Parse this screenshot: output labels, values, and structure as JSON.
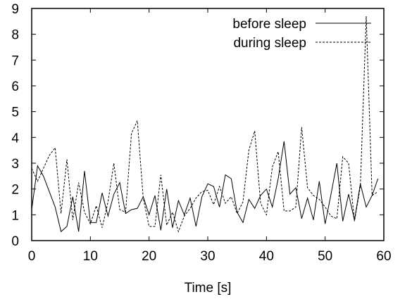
{
  "chart_data": {
    "type": "line",
    "xlabel": "Time [s]",
    "ylabel": "",
    "xlim": [
      0,
      60
    ],
    "ylim": [
      0,
      9
    ],
    "xticks": [
      "0",
      "10",
      "20",
      "30",
      "40",
      "50",
      "60"
    ],
    "yticks": [
      "0",
      "1",
      "2",
      "3",
      "4",
      "5",
      "6",
      "7",
      "8",
      "9"
    ],
    "grid": false,
    "legend_position": "top-right",
    "x": [
      0,
      1,
      2,
      3,
      4,
      5,
      6,
      7,
      8,
      9,
      10,
      11,
      12,
      13,
      14,
      15,
      16,
      17,
      18,
      19,
      20,
      21,
      22,
      23,
      24,
      25,
      26,
      27,
      28,
      29,
      30,
      31,
      32,
      33,
      34,
      35,
      36,
      37,
      38,
      39,
      40,
      41,
      42,
      43,
      44,
      45,
      46,
      47,
      48,
      49,
      50,
      51,
      52,
      53,
      54,
      55,
      56,
      57,
      58,
      59
    ],
    "series": [
      {
        "name": "before sleep",
        "style": "solid",
        "values": [
          1.2,
          2.9,
          2.5,
          1.9,
          1.3,
          0.35,
          0.55,
          1.7,
          0.35,
          2.7,
          0.7,
          0.7,
          1.85,
          0.95,
          1.8,
          2.25,
          1.05,
          1.2,
          1.25,
          1.7,
          1.0,
          1.75,
          0.4,
          2.0,
          0.5,
          1.55,
          1.0,
          1.65,
          0.55,
          1.7,
          2.2,
          2.1,
          1.3,
          2.55,
          2.4,
          1.1,
          0.7,
          1.6,
          1.25,
          1.75,
          2.0,
          1.3,
          2.4,
          3.85,
          1.8,
          2.05,
          0.85,
          1.65,
          0.8,
          2.3,
          0.65,
          1.8,
          3.0,
          0.75,
          1.8,
          0.8,
          2.2,
          1.3,
          1.75,
          2.4
        ]
      },
      {
        "name": "during sleep",
        "style": "dashed",
        "values": [
          2.8,
          2.3,
          2.8,
          3.3,
          3.6,
          1.05,
          3.15,
          0.8,
          2.25,
          1.1,
          0.65,
          1.35,
          0.5,
          1.5,
          3.0,
          1.2,
          1.1,
          4.15,
          4.65,
          1.65,
          0.55,
          0.55,
          2.55,
          0.6,
          1.1,
          0.35,
          0.95,
          1.25,
          1.65,
          1.9,
          1.95,
          1.4,
          2.1,
          1.45,
          1.7,
          1.05,
          1.5,
          3.5,
          4.25,
          1.45,
          1.0,
          2.85,
          3.45,
          1.15,
          1.15,
          1.3,
          4.4,
          2.05,
          1.75,
          1.6,
          1.3,
          0.95,
          0.85,
          3.25,
          3.0,
          0.75,
          2.1,
          8.7,
          1.75,
          1.9
        ]
      }
    ]
  }
}
